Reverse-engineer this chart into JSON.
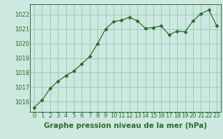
{
  "x": [
    0,
    1,
    2,
    3,
    4,
    5,
    6,
    7,
    8,
    9,
    10,
    11,
    12,
    13,
    14,
    15,
    16,
    17,
    18,
    19,
    20,
    21,
    22,
    23
  ],
  "y": [
    1015.6,
    1016.1,
    1016.9,
    1017.4,
    1017.8,
    1018.1,
    1018.6,
    1019.1,
    1020.0,
    1021.0,
    1021.5,
    1021.6,
    1021.8,
    1021.55,
    1021.05,
    1021.1,
    1021.2,
    1020.6,
    1020.85,
    1020.8,
    1021.55,
    1022.05,
    1022.3,
    1021.2
  ],
  "line_color": "#2d6b2d",
  "marker": "D",
  "marker_size": 2.5,
  "bg_color": "#cce8e0",
  "grid_color": "#99ccbb",
  "title": "Graphe pression niveau de la mer (hPa)",
  "ylim_min": 1015.3,
  "ylim_max": 1022.7,
  "yticks": [
    1016,
    1017,
    1018,
    1019,
    1020,
    1021,
    1022
  ],
  "xlim_min": -0.5,
  "xlim_max": 23.5,
  "xticks": [
    0,
    1,
    2,
    3,
    4,
    5,
    6,
    7,
    8,
    9,
    10,
    11,
    12,
    13,
    14,
    15,
    16,
    17,
    18,
    19,
    20,
    21,
    22,
    23
  ],
  "title_fontsize": 7.5,
  "tick_fontsize": 6.0,
  "title_color": "#2d6b2d",
  "tick_color": "#2d6b2d",
  "spine_color": "#2d6b2d"
}
